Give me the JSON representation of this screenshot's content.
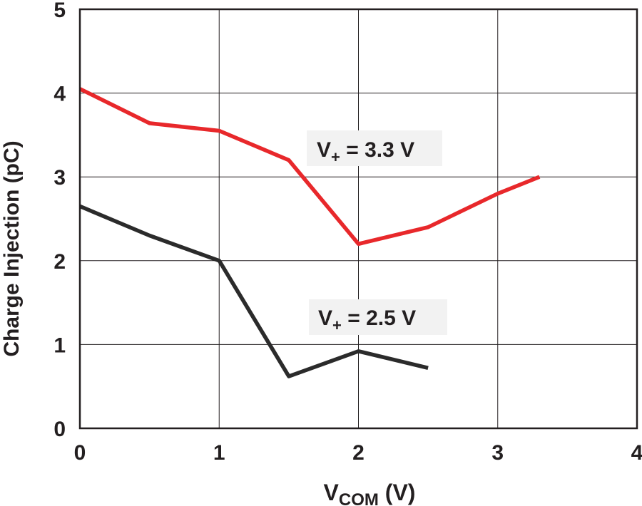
{
  "chart_data": {
    "type": "line",
    "title": "",
    "xlabel": {
      "main": "V",
      "sub": "COM",
      "unit": " (V)"
    },
    "ylabel": "Charge Injection (pC)",
    "xlim": [
      0,
      4
    ],
    "ylim": [
      0,
      5
    ],
    "x_ticks": [
      "0",
      "1",
      "2",
      "3",
      "4"
    ],
    "y_ticks": [
      "0",
      "1",
      "2",
      "3",
      "4",
      "5"
    ],
    "grid": true,
    "legend": "none",
    "series": [
      {
        "label": {
          "main": "V",
          "sub": "+",
          "rest": " = 3.3 V"
        },
        "color": "#e8282b",
        "x": [
          0,
          0.5,
          1,
          1.5,
          2,
          2.5,
          3,
          3.3
        ],
        "y": [
          4.05,
          3.64,
          3.55,
          3.2,
          2.2,
          2.4,
          2.8,
          3.0
        ]
      },
      {
        "label": {
          "main": "V",
          "sub": "+",
          "rest": " = 2.5 V"
        },
        "color": "#2b2b2b",
        "x": [
          0,
          0.5,
          1,
          1.5,
          2,
          2.5
        ],
        "y": [
          2.65,
          2.3,
          2.0,
          0.62,
          0.92,
          0.72
        ]
      }
    ]
  }
}
